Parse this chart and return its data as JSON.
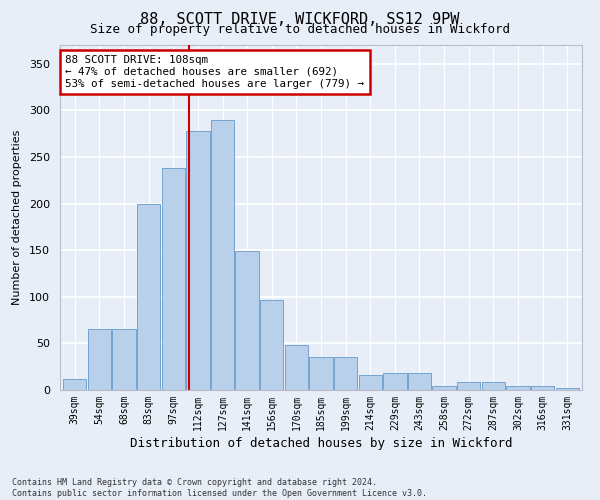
{
  "title1": "88, SCOTT DRIVE, WICKFORD, SS12 9PW",
  "title2": "Size of property relative to detached houses in Wickford",
  "xlabel": "Distribution of detached houses by size in Wickford",
  "ylabel": "Number of detached properties",
  "categories": [
    "39sqm",
    "54sqm",
    "68sqm",
    "83sqm",
    "97sqm",
    "112sqm",
    "127sqm",
    "141sqm",
    "156sqm",
    "170sqm",
    "185sqm",
    "199sqm",
    "214sqm",
    "229sqm",
    "243sqm",
    "258sqm",
    "272sqm",
    "287sqm",
    "302sqm",
    "316sqm",
    "331sqm"
  ],
  "values": [
    12,
    65,
    65,
    200,
    238,
    278,
    290,
    149,
    97,
    48,
    35,
    35,
    16,
    18,
    18,
    4,
    9,
    9,
    4,
    4,
    2
  ],
  "bar_color": "#b8d0ea",
  "bar_edge_color": "#6699cc",
  "bg_color": "#e8eef8",
  "grid_color": "#ffffff",
  "annotation_box_color": "#ffffff",
  "annotation_box_edge_color": "#cc0000",
  "vline_color": "#cc0000",
  "vline_x_index": 4.65,
  "annotation_text_line1": "88 SCOTT DRIVE: 108sqm",
  "annotation_text_line2": "← 47% of detached houses are smaller (692)",
  "annotation_text_line3": "53% of semi-detached houses are larger (779) →",
  "ylim": [
    0,
    370
  ],
  "yticks": [
    0,
    50,
    100,
    150,
    200,
    250,
    300,
    350
  ],
  "footer1": "Contains HM Land Registry data © Crown copyright and database right 2024.",
  "footer2": "Contains public sector information licensed under the Open Government Licence v3.0."
}
